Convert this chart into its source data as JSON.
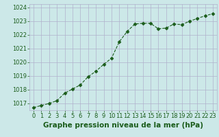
{
  "x": [
    0,
    1,
    2,
    3,
    4,
    5,
    6,
    7,
    8,
    9,
    10,
    11,
    12,
    13,
    14,
    15,
    16,
    17,
    18,
    19,
    20,
    21,
    22,
    23
  ],
  "y": [
    1016.7,
    1016.85,
    1017.0,
    1017.2,
    1017.75,
    1018.05,
    1018.35,
    1018.95,
    1019.35,
    1019.85,
    1020.3,
    1021.5,
    1022.25,
    1022.8,
    1022.85,
    1022.85,
    1022.45,
    1022.5,
    1022.8,
    1022.75,
    1023.0,
    1023.2,
    1023.4,
    1023.55
  ],
  "line_color": "#1a5c1a",
  "marker": "D",
  "marker_size": 2.5,
  "bg_color": "#cce8e8",
  "grid_color": "#b0b0cc",
  "xlabel": "Graphe pression niveau de la mer (hPa)",
  "xlabel_color": "#1a5c1a",
  "xlabel_fontsize": 7.5,
  "tick_color": "#1a5c1a",
  "tick_fontsize": 6.0,
  "ylim": [
    1016.5,
    1024.25
  ],
  "yticks": [
    1017,
    1018,
    1019,
    1020,
    1021,
    1022,
    1023,
    1024
  ],
  "xlim": [
    -0.5,
    23.5
  ],
  "xticks": [
    0,
    1,
    2,
    3,
    4,
    5,
    6,
    7,
    8,
    9,
    10,
    11,
    12,
    13,
    14,
    15,
    16,
    17,
    18,
    19,
    20,
    21,
    22,
    23
  ]
}
